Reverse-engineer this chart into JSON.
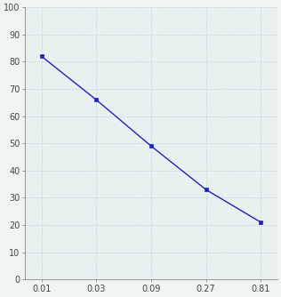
{
  "x": [
    0.01,
    0.03,
    0.09,
    0.27,
    0.81
  ],
  "y": [
    82,
    66,
    49,
    33,
    21
  ],
  "line_color": "#2222BB",
  "marker": "s",
  "marker_size": 3,
  "marker_color": "#2222BB",
  "ylim": [
    0,
    100
  ],
  "xtick_labels": [
    "0.01",
    "0.03",
    "0.09",
    "0.27",
    "0.81"
  ],
  "yticks": [
    0,
    10,
    20,
    30,
    40,
    50,
    60,
    70,
    80,
    90,
    100
  ],
  "grid_color": "#aacccc",
  "background_color": "#e8f0f0",
  "line_width": 1.0,
  "tick_fontsize": 7,
  "spine_color": "#888888"
}
